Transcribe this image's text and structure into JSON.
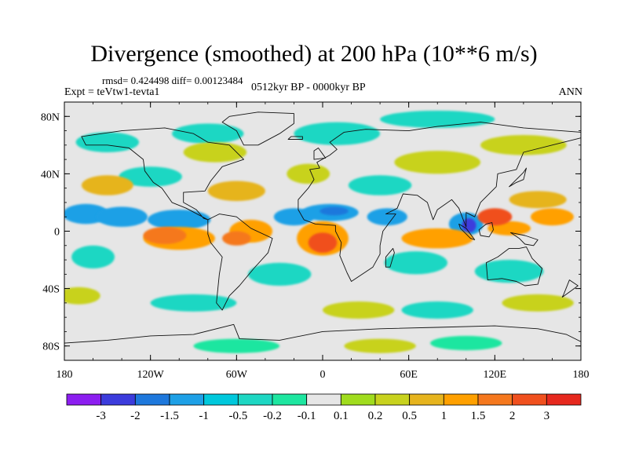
{
  "title": "Divergence (smoothed) at 200 hPa (10**6 m/s)",
  "stats": "rmsd= 0.424498 diff= 0.00123484",
  "experiment": "Expt = teVtw1-tevta1",
  "period": "0512kyr BP - 0000kyr BP",
  "season": "ANN",
  "map": {
    "projection": "cylindrical-equidistant",
    "lon_range": [
      -180,
      180
    ],
    "lat_range": [
      -90,
      90
    ],
    "y_ticks": [
      {
        "lat": 80,
        "label": "80N"
      },
      {
        "lat": 40,
        "label": "40N"
      },
      {
        "lat": 0,
        "label": "0"
      },
      {
        "lat": -40,
        "label": "40S"
      },
      {
        "lat": -80,
        "label": "80S"
      }
    ],
    "x_ticks": [
      {
        "lon": -180,
        "label": "180"
      },
      {
        "lon": -120,
        "label": "120W"
      },
      {
        "lon": -60,
        "label": "60W"
      },
      {
        "lon": 0,
        "label": "0"
      },
      {
        "lon": 60,
        "label": "60E"
      },
      {
        "lon": 120,
        "label": "120E"
      },
      {
        "lon": 180,
        "label": "180"
      }
    ]
  },
  "colorbar": {
    "colors": [
      "#8c1ef0",
      "#3c3cdc",
      "#1e78dc",
      "#1ea0e6",
      "#00c8dc",
      "#1ed7c3",
      "#1ee6a0",
      "#e6e6e6",
      "#a0dc1e",
      "#c8d21e",
      "#e6b41e",
      "#ffa000",
      "#f5781e",
      "#f0501e",
      "#e6281e"
    ],
    "labels": [
      "-3",
      "-2",
      "-1.5",
      "-1",
      "-0.5",
      "-0.2",
      "-0.1",
      "0.1",
      "0.2",
      "0.5",
      "1",
      "1.5",
      "2",
      "3"
    ]
  },
  "blobs": [
    {
      "lon": -165,
      "lat": 12,
      "rx": 16,
      "ry": 7,
      "c": 3
    },
    {
      "lon": -140,
      "lat": 10,
      "rx": 18,
      "ry": 7,
      "c": 3
    },
    {
      "lon": -100,
      "lat": 8,
      "rx": 22,
      "ry": 7,
      "c": 3
    },
    {
      "lon": -20,
      "lat": 10,
      "rx": 14,
      "ry": 6,
      "c": 3
    },
    {
      "lon": 5,
      "lat": 13,
      "rx": 20,
      "ry": 6,
      "c": 3
    },
    {
      "lon": 8,
      "lat": 14,
      "rx": 10,
      "ry": 3,
      "c": 2
    },
    {
      "lon": 45,
      "lat": 10,
      "rx": 14,
      "ry": 6,
      "c": 3
    },
    {
      "lon": 100,
      "lat": 5,
      "rx": 12,
      "ry": 8,
      "c": 3
    },
    {
      "lon": 102,
      "lat": 4,
      "rx": 5,
      "ry": 5,
      "c": 1
    },
    {
      "lon": -120,
      "lat": 38,
      "rx": 22,
      "ry": 7,
      "c": 5
    },
    {
      "lon": 40,
      "lat": 32,
      "rx": 22,
      "ry": 7,
      "c": 5
    },
    {
      "lon": -150,
      "lat": 62,
      "rx": 22,
      "ry": 7,
      "c": 5
    },
    {
      "lon": -80,
      "lat": 68,
      "rx": 25,
      "ry": 7,
      "c": 5
    },
    {
      "lon": 10,
      "lat": 68,
      "rx": 30,
      "ry": 8,
      "c": 5
    },
    {
      "lon": 80,
      "lat": 78,
      "rx": 40,
      "ry": 6,
      "c": 5
    },
    {
      "lon": -160,
      "lat": -18,
      "rx": 15,
      "ry": 8,
      "c": 5
    },
    {
      "lon": -30,
      "lat": -30,
      "rx": 22,
      "ry": 8,
      "c": 5
    },
    {
      "lon": 65,
      "lat": -22,
      "rx": 22,
      "ry": 8,
      "c": 5
    },
    {
      "lon": 130,
      "lat": -28,
      "rx": 24,
      "ry": 8,
      "c": 5
    },
    {
      "lon": -90,
      "lat": -50,
      "rx": 30,
      "ry": 6,
      "c": 5
    },
    {
      "lon": 80,
      "lat": -55,
      "rx": 25,
      "ry": 6,
      "c": 5
    },
    {
      "lon": -60,
      "lat": -80,
      "rx": 30,
      "ry": 5,
      "c": 6
    },
    {
      "lon": 100,
      "lat": -78,
      "rx": 25,
      "ry": 5,
      "c": 6
    },
    {
      "lon": -150,
      "lat": 32,
      "rx": 18,
      "ry": 7,
      "c": 10
    },
    {
      "lon": -60,
      "lat": 28,
      "rx": 20,
      "ry": 7,
      "c": 10
    },
    {
      "lon": -75,
      "lat": 55,
      "rx": 22,
      "ry": 7,
      "c": 9
    },
    {
      "lon": -10,
      "lat": 40,
      "rx": 15,
      "ry": 7,
      "c": 9
    },
    {
      "lon": 80,
      "lat": 48,
      "rx": 30,
      "ry": 8,
      "c": 9
    },
    {
      "lon": 140,
      "lat": 60,
      "rx": 30,
      "ry": 7,
      "c": 9
    },
    {
      "lon": 150,
      "lat": 22,
      "rx": 20,
      "ry": 6,
      "c": 10
    },
    {
      "lon": 160,
      "lat": 10,
      "rx": 15,
      "ry": 6,
      "c": 11
    },
    {
      "lon": 25,
      "lat": -55,
      "rx": 25,
      "ry": 6,
      "c": 9
    },
    {
      "lon": 150,
      "lat": -50,
      "rx": 25,
      "ry": 6,
      "c": 9
    },
    {
      "lon": -170,
      "lat": -45,
      "rx": 15,
      "ry": 6,
      "c": 9
    },
    {
      "lon": 40,
      "lat": -80,
      "rx": 25,
      "ry": 5,
      "c": 9
    },
    {
      "lon": -100,
      "lat": -5,
      "rx": 25,
      "ry": 8,
      "c": 11
    },
    {
      "lon": -110,
      "lat": -3,
      "rx": 15,
      "ry": 6,
      "c": 12
    },
    {
      "lon": -50,
      "lat": 0,
      "rx": 15,
      "ry": 8,
      "c": 11
    },
    {
      "lon": -60,
      "lat": -5,
      "rx": 10,
      "ry": 5,
      "c": 12
    },
    {
      "lon": 0,
      "lat": -5,
      "rx": 18,
      "ry": 12,
      "c": 11
    },
    {
      "lon": 0,
      "lat": -8,
      "rx": 10,
      "ry": 7,
      "c": 13
    },
    {
      "lon": 80,
      "lat": -5,
      "rx": 25,
      "ry": 7,
      "c": 11
    },
    {
      "lon": 130,
      "lat": 2,
      "rx": 15,
      "ry": 5,
      "c": 11
    },
    {
      "lon": 120,
      "lat": 10,
      "rx": 12,
      "ry": 6,
      "c": 13
    }
  ],
  "land": [
    {
      "name": "north-america",
      "pts": [
        [
          -168,
          66
        ],
        [
          -140,
          70
        ],
        [
          -110,
          72
        ],
        [
          -90,
          68
        ],
        [
          -80,
          62
        ],
        [
          -65,
          60
        ],
        [
          -55,
          50
        ],
        [
          -70,
          45
        ],
        [
          -78,
          35
        ],
        [
          -82,
          28
        ],
        [
          -97,
          27
        ],
        [
          -97,
          20
        ],
        [
          -88,
          15
        ],
        [
          -83,
          9
        ],
        [
          -80,
          8
        ],
        [
          -95,
          16
        ],
        [
          -105,
          20
        ],
        [
          -112,
          30
        ],
        [
          -118,
          34
        ],
        [
          -124,
          42
        ],
        [
          -125,
          50
        ],
        [
          -135,
          58
        ],
        [
          -150,
          60
        ],
        [
          -165,
          60
        ]
      ]
    },
    {
      "name": "greenland",
      "pts": [
        [
          -55,
          60
        ],
        [
          -45,
          60
        ],
        [
          -30,
          68
        ],
        [
          -20,
          75
        ],
        [
          -20,
          82
        ],
        [
          -45,
          83
        ],
        [
          -65,
          80
        ],
        [
          -70,
          76
        ],
        [
          -60,
          70
        ]
      ]
    },
    {
      "name": "south-america",
      "pts": [
        [
          -80,
          8
        ],
        [
          -72,
          12
        ],
        [
          -60,
          10
        ],
        [
          -50,
          2
        ],
        [
          -35,
          -5
        ],
        [
          -38,
          -15
        ],
        [
          -48,
          -26
        ],
        [
          -58,
          -38
        ],
        [
          -65,
          -45
        ],
        [
          -70,
          -55
        ],
        [
          -74,
          -50
        ],
        [
          -72,
          -30
        ],
        [
          -70,
          -18
        ],
        [
          -78,
          -8
        ],
        [
          -80,
          -2
        ]
      ]
    },
    {
      "name": "africa-eurasia",
      "pts": [
        [
          -17,
          15
        ],
        [
          -17,
          22
        ],
        [
          -10,
          30
        ],
        [
          -6,
          36
        ],
        [
          -9,
          43
        ],
        [
          -2,
          44
        ],
        [
          -4,
          48
        ],
        [
          5,
          53
        ],
        [
          10,
          57
        ],
        [
          5,
          62
        ],
        [
          15,
          69
        ],
        [
          30,
          71
        ],
        [
          60,
          70
        ],
        [
          80,
          73
        ],
        [
          110,
          76
        ],
        [
          140,
          72
        ],
        [
          180,
          69
        ],
        [
          180,
          65
        ],
        [
          160,
          60
        ],
        [
          140,
          55
        ],
        [
          135,
          43
        ],
        [
          122,
          40
        ],
        [
          121,
          31
        ],
        [
          110,
          20
        ],
        [
          106,
          10
        ],
        [
          100,
          13
        ],
        [
          100,
          3
        ],
        [
          98,
          8
        ],
        [
          95,
          16
        ],
        [
          90,
          22
        ],
        [
          80,
          15
        ],
        [
          77,
          8
        ],
        [
          73,
          20
        ],
        [
          66,
          25
        ],
        [
          56,
          26
        ],
        [
          52,
          16
        ],
        [
          44,
          12
        ],
        [
          51,
          12
        ],
        [
          42,
          0
        ],
        [
          40,
          -10
        ],
        [
          40,
          -16
        ],
        [
          35,
          -25
        ],
        [
          20,
          -35
        ],
        [
          17,
          -29
        ],
        [
          12,
          -17
        ],
        [
          13,
          -8
        ],
        [
          9,
          0
        ],
        [
          9,
          4
        ],
        [
          -5,
          5
        ],
        [
          -13,
          8
        ]
      ]
    },
    {
      "name": "australia",
      "pts": [
        [
          114,
          -22
        ],
        [
          122,
          -18
        ],
        [
          130,
          -12
        ],
        [
          137,
          -12
        ],
        [
          142,
          -11
        ],
        [
          146,
          -19
        ],
        [
          153,
          -26
        ],
        [
          150,
          -37
        ],
        [
          141,
          -38
        ],
        [
          135,
          -35
        ],
        [
          125,
          -33
        ],
        [
          115,
          -34
        ]
      ]
    },
    {
      "name": "antarctica",
      "pts": [
        [
          -180,
          -90
        ],
        [
          -180,
          -78
        ],
        [
          -150,
          -76
        ],
        [
          -120,
          -73
        ],
        [
          -90,
          -72
        ],
        [
          -62,
          -65
        ],
        [
          -58,
          -75
        ],
        [
          -30,
          -76
        ],
        [
          0,
          -70
        ],
        [
          40,
          -68
        ],
        [
          80,
          -67
        ],
        [
          120,
          -66
        ],
        [
          150,
          -68
        ],
        [
          170,
          -72
        ],
        [
          180,
          -77
        ],
        [
          180,
          -90
        ]
      ]
    },
    {
      "name": "madagascar",
      "pts": [
        [
          44,
          -25
        ],
        [
          47,
          -25
        ],
        [
          50,
          -15
        ],
        [
          49,
          -12
        ],
        [
          44,
          -18
        ]
      ]
    },
    {
      "name": "borneo",
      "pts": [
        [
          109,
          1
        ],
        [
          114,
          5
        ],
        [
          118,
          6
        ],
        [
          119,
          1
        ],
        [
          116,
          -4
        ],
        [
          110,
          -3
        ]
      ]
    },
    {
      "name": "sumatra",
      "pts": [
        [
          95,
          5
        ],
        [
          100,
          2
        ],
        [
          106,
          -6
        ],
        [
          103,
          -5
        ],
        [
          96,
          2
        ]
      ]
    },
    {
      "name": "new-guinea",
      "pts": [
        [
          131,
          -1
        ],
        [
          141,
          -3
        ],
        [
          150,
          -6
        ],
        [
          147,
          -10
        ],
        [
          141,
          -9
        ],
        [
          137,
          -5
        ]
      ]
    },
    {
      "name": "japan",
      "pts": [
        [
          130,
          31
        ],
        [
          135,
          34
        ],
        [
          140,
          36
        ],
        [
          142,
          44
        ],
        [
          140,
          41
        ],
        [
          135,
          36
        ]
      ]
    },
    {
      "name": "british-isles",
      "pts": [
        [
          -6,
          50
        ],
        [
          2,
          51
        ],
        [
          -3,
          58
        ],
        [
          -6,
          56
        ]
      ]
    },
    {
      "name": "new-zealand",
      "pts": [
        [
          167,
          -46
        ],
        [
          174,
          -41
        ],
        [
          178,
          -38
        ],
        [
          172,
          -34
        ],
        [
          168,
          -44
        ]
      ]
    },
    {
      "name": "iceland",
      "pts": [
        [
          -24,
          64
        ],
        [
          -14,
          64
        ],
        [
          -14,
          66
        ],
        [
          -22,
          66
        ]
      ]
    }
  ]
}
